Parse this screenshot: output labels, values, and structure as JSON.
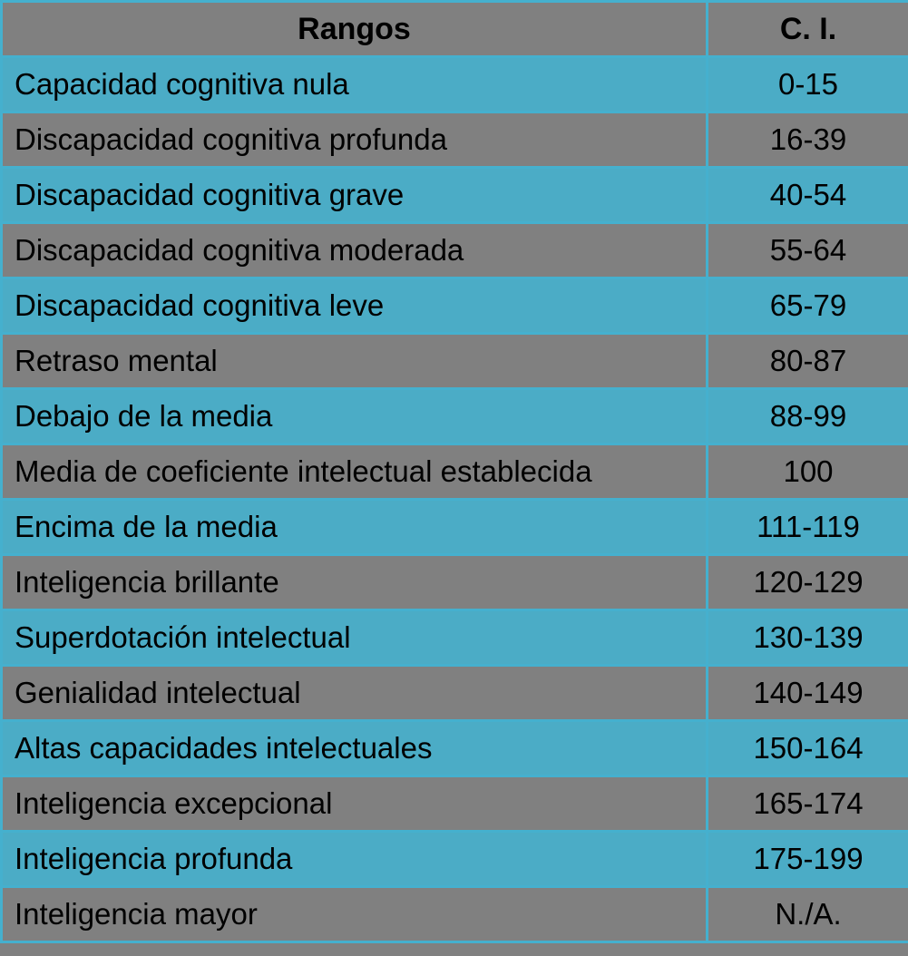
{
  "chart_data": {
    "type": "table",
    "columns": [
      "Rangos",
      "C. I."
    ],
    "rows": [
      {
        "label": "Capacidad cognitiva nula",
        "ci": "0-15"
      },
      {
        "label": "Discapacidad cognitiva profunda",
        "ci": "16-39"
      },
      {
        "label": "Discapacidad cognitiva grave",
        "ci": "40-54"
      },
      {
        "label": "Discapacidad cognitiva moderada",
        "ci": "55-64"
      },
      {
        "label": "Discapacidad cognitiva leve",
        "ci": "65-79"
      },
      {
        "label": "Retraso mental",
        "ci": "80-87"
      },
      {
        "label": "Debajo de la media",
        "ci": "88-99"
      },
      {
        "label": "Media de coeficiente intelectual establecida",
        "ci": "100"
      },
      {
        "label": "Encima de la media",
        "ci": "111-119"
      },
      {
        "label": "Inteligencia brillante",
        "ci": "120-129"
      },
      {
        "label": "Superdotación intelectual",
        "ci": "130-139"
      },
      {
        "label": "Genialidad intelectual",
        "ci": "140-149"
      },
      {
        "label": "Altas capacidades intelectuales",
        "ci": "150-164"
      },
      {
        "label": "Inteligencia excepcional",
        "ci": "165-174"
      },
      {
        "label": "Inteligencia profunda",
        "ci": "175-199"
      },
      {
        "label": "Inteligencia mayor",
        "ci": "N./A."
      }
    ],
    "layout": {
      "row_alternation_start": "blue",
      "header_background": "gray"
    }
  },
  "colors": {
    "row_blue": "#4BACC6",
    "row_gray": "#808080",
    "border_blue": "#45B0CE",
    "text": "#000000",
    "page_background": "#808080"
  }
}
